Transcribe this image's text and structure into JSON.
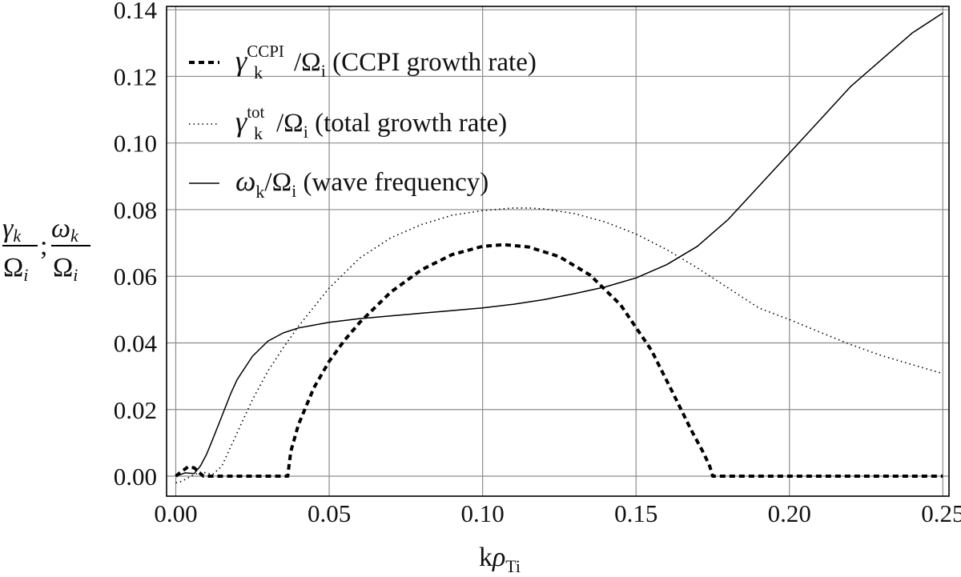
{
  "chart_data": {
    "type": "line",
    "title": "",
    "xlabel": {
      "main": "k",
      "greek": "ρ",
      "sub": "Ti"
    },
    "ylabel": {
      "num1": "γ",
      "num1_sub": "k",
      "den": "Ω",
      "den_sub": "i",
      "sep": ";",
      "num2": "ω",
      "num2_sub": "k"
    },
    "xlim": [
      -0.003,
      0.252
    ],
    "ylim": [
      -0.006,
      0.141
    ],
    "x_ticks": [
      0.0,
      0.05,
      0.1,
      0.15,
      0.2,
      0.25
    ],
    "x_tick_labels": [
      "0.00",
      "0.05",
      "0.10",
      "0.15",
      "0.20",
      "0.25"
    ],
    "y_ticks": [
      0.0,
      0.02,
      0.04,
      0.06,
      0.08,
      0.1,
      0.12,
      0.14
    ],
    "y_tick_labels": [
      "0.00",
      "0.02",
      "0.04",
      "0.06",
      "0.08",
      "0.10",
      "0.12",
      "0.14"
    ],
    "grid": true,
    "legend_position": "top-left",
    "series": [
      {
        "key": "ccpi",
        "legend_symbol": "γ",
        "legend_sup": "CCPI",
        "legend_sub": "k",
        "legend_den": "/Ω",
        "legend_den_sub": "i",
        "legend_desc": " (CCPI growth rate)",
        "style": "dashed",
        "color": "#000000",
        "x": [
          0.0,
          0.002,
          0.004,
          0.006,
          0.008,
          0.009,
          0.012,
          0.02,
          0.03,
          0.0365,
          0.037,
          0.0375,
          0.04,
          0.045,
          0.05,
          0.055,
          0.06,
          0.07,
          0.08,
          0.09,
          0.1,
          0.107,
          0.115,
          0.125,
          0.135,
          0.145,
          0.155,
          0.162,
          0.168,
          0.172,
          0.174,
          0.175,
          0.18,
          0.2,
          0.25
        ],
        "y": [
          0.0,
          0.0015,
          0.0028,
          0.0025,
          0.0008,
          0.0,
          0.0,
          0.0,
          0.0,
          0.0,
          0.004,
          0.0075,
          0.0155,
          0.0265,
          0.0345,
          0.0408,
          0.0462,
          0.0552,
          0.0619,
          0.0665,
          0.069,
          0.0695,
          0.0688,
          0.0659,
          0.0604,
          0.0514,
          0.0378,
          0.025,
          0.0138,
          0.007,
          0.003,
          0.0,
          0.0,
          0.0,
          0.0
        ]
      },
      {
        "key": "total",
        "legend_symbol": "γ",
        "legend_sup": "tot",
        "legend_sub": "k",
        "legend_den": "/Ω",
        "legend_den_sub": "i",
        "legend_desc": " (total growth rate)",
        "style": "dotted",
        "color": "#000000",
        "x": [
          0.0,
          0.002,
          0.005,
          0.008,
          0.01,
          0.012,
          0.015,
          0.02,
          0.025,
          0.03,
          0.035,
          0.04,
          0.05,
          0.06,
          0.07,
          0.08,
          0.09,
          0.1,
          0.11,
          0.115,
          0.12,
          0.13,
          0.14,
          0.15,
          0.16,
          0.17,
          0.18,
          0.19,
          0.2,
          0.21,
          0.22,
          0.23,
          0.24,
          0.25
        ],
        "y": [
          -0.002,
          -0.0015,
          0.0,
          0.0012,
          0.001,
          0.0005,
          0.003,
          0.013,
          0.023,
          0.0315,
          0.0385,
          0.045,
          0.0565,
          0.0655,
          0.0715,
          0.0755,
          0.0783,
          0.0797,
          0.0805,
          0.0805,
          0.0802,
          0.0788,
          0.0763,
          0.0727,
          0.068,
          0.0625,
          0.0565,
          0.0505,
          0.047,
          0.0432,
          0.0395,
          0.0362,
          0.0335,
          0.0308
        ]
      },
      {
        "key": "freq",
        "legend_symbol": "ω",
        "legend_sup": "",
        "legend_sub": "k",
        "legend_den": "/Ω",
        "legend_den_sub": "i",
        "legend_desc": " (wave frequency)",
        "style": "solid",
        "color": "#000000",
        "x": [
          0.0,
          0.003,
          0.006,
          0.008,
          0.01,
          0.012,
          0.015,
          0.018,
          0.02,
          0.025,
          0.03,
          0.035,
          0.04,
          0.05,
          0.06,
          0.07,
          0.08,
          0.09,
          0.1,
          0.11,
          0.12,
          0.13,
          0.14,
          0.15,
          0.16,
          0.17,
          0.18,
          0.19,
          0.2,
          0.21,
          0.22,
          0.23,
          0.24,
          0.25
        ],
        "y": [
          0.0,
          0.001,
          0.0008,
          0.003,
          0.0065,
          0.011,
          0.018,
          0.025,
          0.029,
          0.036,
          0.0405,
          0.043,
          0.0445,
          0.0462,
          0.0473,
          0.0481,
          0.0489,
          0.0497,
          0.0505,
          0.0516,
          0.053,
          0.0548,
          0.0568,
          0.0595,
          0.0635,
          0.069,
          0.077,
          0.087,
          0.097,
          0.107,
          0.117,
          0.125,
          0.133,
          0.139
        ]
      }
    ]
  }
}
